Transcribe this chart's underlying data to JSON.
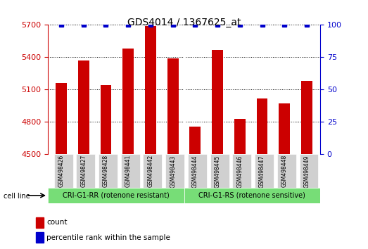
{
  "title": "GDS4014 / 1367625_at",
  "samples": [
    "GSM498426",
    "GSM498427",
    "GSM498428",
    "GSM498441",
    "GSM498442",
    "GSM498443",
    "GSM498444",
    "GSM498445",
    "GSM498446",
    "GSM498447",
    "GSM498448",
    "GSM498449"
  ],
  "counts": [
    5160,
    5370,
    5140,
    5480,
    5690,
    5390,
    4760,
    5470,
    4830,
    5020,
    4970,
    5180
  ],
  "percentile_ranks": [
    100,
    100,
    100,
    100,
    100,
    100,
    100,
    100,
    100,
    100,
    100,
    100
  ],
  "bar_color": "#cc0000",
  "dot_color": "#0000cc",
  "ylim_left": [
    4500,
    5700
  ],
  "ylim_right": [
    0,
    100
  ],
  "yticks_left": [
    4500,
    4800,
    5100,
    5400,
    5700
  ],
  "yticks_right": [
    0,
    25,
    50,
    75,
    100
  ],
  "group1_label": "CRI-G1-RR (rotenone resistant)",
  "group2_label": "CRI-G1-RS (rotenone sensitive)",
  "group1_count": 6,
  "group2_count": 6,
  "cell_line_label": "cell line",
  "legend_count_label": "count",
  "legend_percentile_label": "percentile rank within the sample",
  "group_bg_color": "#77dd77",
  "tick_label_bg": "#d0d0d0",
  "bar_width": 0.5
}
